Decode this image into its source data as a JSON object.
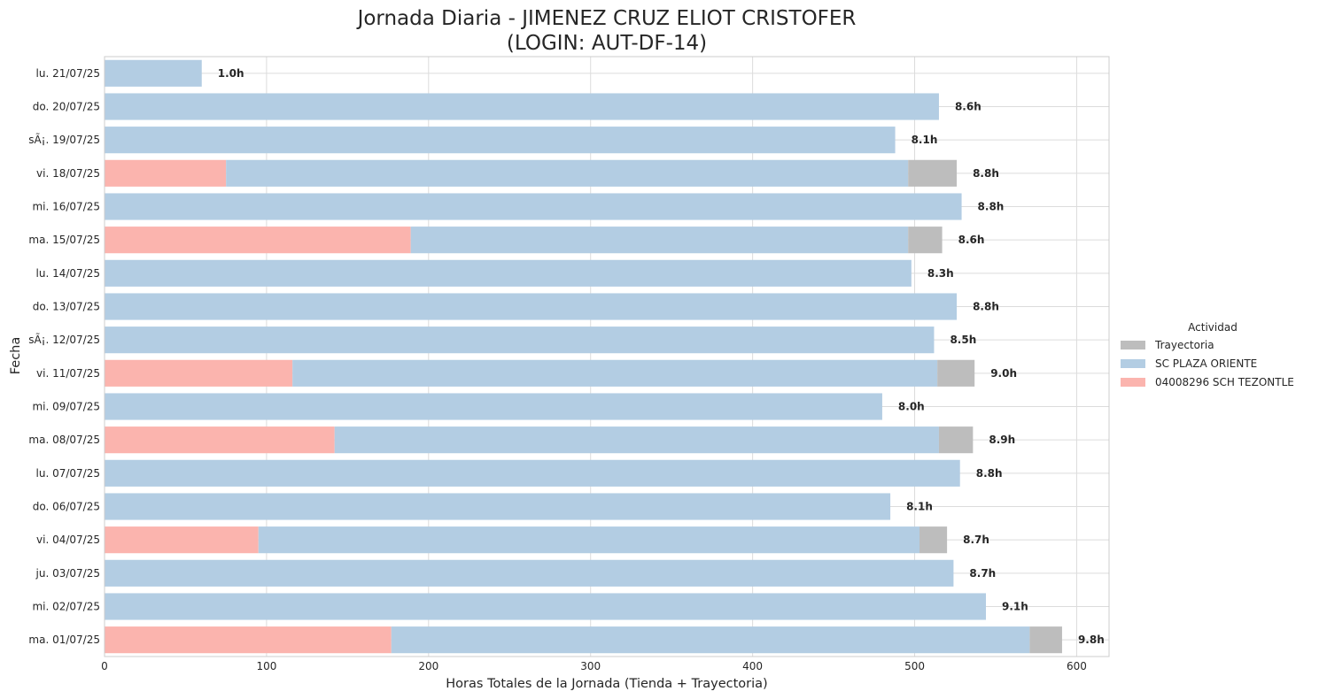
{
  "chart_data": {
    "type": "bar",
    "orientation": "horizontal",
    "stacked": true,
    "title_line1": "Jornada Diaria - JIMENEZ CRUZ ELIOT CRISTOFER",
    "title_line2": "(LOGIN: AUT-DF-14)",
    "xlabel": "Horas Totales de la Jornada (Tienda + Trayectoria)",
    "ylabel": "Fecha",
    "xlim": [
      0,
      620
    ],
    "xticks": [
      0,
      100,
      200,
      300,
      400,
      500,
      600
    ],
    "grid": true,
    "legend": {
      "title": "Actividad",
      "placement": "right",
      "entries": [
        {
          "name": "Trayectoria",
          "color": "#bdbdbd"
        },
        {
          "name": "SC PLAZA ORIENTE",
          "color": "#b3cde3"
        },
        {
          "name": "04008296 SCH TEZONTLE",
          "color": "#fbb4ae"
        }
      ]
    },
    "categories": [
      "lu. 21/07/25",
      "do. 20/07/25",
      "sÃ¡. 19/07/25",
      "vi. 18/07/25",
      "mi. 16/07/25",
      "ma. 15/07/25",
      "lu. 14/07/25",
      "do. 13/07/25",
      "sÃ¡. 12/07/25",
      "vi. 11/07/25",
      "mi. 09/07/25",
      "ma. 08/07/25",
      "lu. 07/07/25",
      "do. 06/07/25",
      "vi. 04/07/25",
      "ju. 03/07/25",
      "mi. 02/07/25",
      "ma. 01/07/25"
    ],
    "series": [
      {
        "name": "04008296 SCH TEZONTLE",
        "color": "#fbb4ae",
        "values": [
          0,
          0,
          0,
          75,
          0,
          189,
          0,
          0,
          0,
          116,
          0,
          142,
          0,
          0,
          95,
          0,
          0,
          177
        ]
      },
      {
        "name": "SC PLAZA ORIENTE",
        "color": "#b3cde3",
        "values": [
          60,
          515,
          488,
          421,
          529,
          307,
          498,
          526,
          512,
          398,
          480,
          373,
          528,
          485,
          408,
          524,
          544,
          394
        ]
      },
      {
        "name": "Trayectoria",
        "color": "#bdbdbd",
        "values": [
          0,
          0,
          0,
          30,
          0,
          21,
          0,
          0,
          0,
          23,
          0,
          21,
          0,
          0,
          17,
          0,
          0,
          20
        ]
      }
    ],
    "totals_labels": [
      "1.0h",
      "8.6h",
      "8.1h",
      "8.8h",
      "8.8h",
      "8.6h",
      "8.3h",
      "8.8h",
      "8.5h",
      "9.0h",
      "8.0h",
      "8.9h",
      "8.8h",
      "8.1h",
      "8.7h",
      "8.7h",
      "9.1h",
      "9.8h"
    ]
  }
}
